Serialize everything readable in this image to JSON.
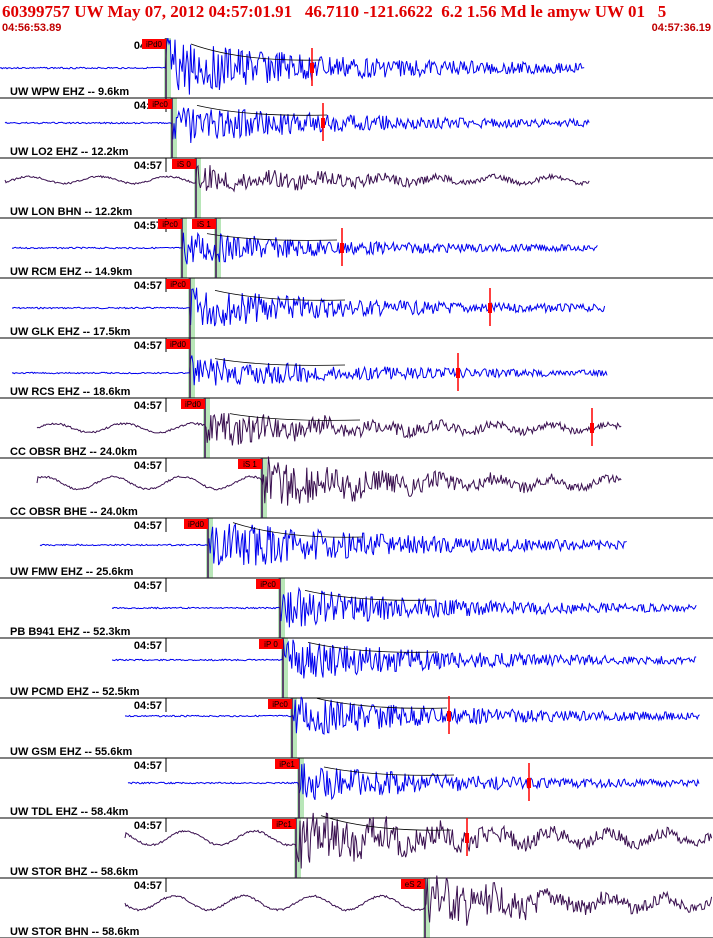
{
  "header": {
    "title": "60399757 UW May 07, 2012 04:57:01.91   46.7110 -121.6622  6.2 1.56 Md le amyw UW 01   5",
    "start_time": "04:56:53.89",
    "end_time": "04:57:36.19"
  },
  "colors": {
    "title": "#e00000",
    "trace_blue": "#0000ee",
    "trace_dark": "#3a1050",
    "pick_box": "#ff0000",
    "phase_band": "#b8e6b8",
    "amplitude_mark": "#ff0000"
  },
  "chart_data": {
    "type": "seismogram",
    "time_range": [
      "04:56:53.89",
      "04:57:36.19"
    ],
    "time_tick_label": "04:57",
    "traces": [
      {
        "label": "UW WPW EHZ -- 9.6km",
        "color": "blue",
        "p_pick": "iPd0",
        "s_pick": "",
        "amp_mark": true
      },
      {
        "label": "UW LO2 EHZ -- 12.2km",
        "color": "blue",
        "p_pick": "iPc0",
        "s_pick": "",
        "amp_mark": true
      },
      {
        "label": "UW LON BHN -- 12.2km",
        "color": "dark",
        "p_pick": "",
        "s_pick": "iS 0",
        "amp_mark": false
      },
      {
        "label": "UW RCM EHZ -- 14.9km",
        "color": "blue",
        "p_pick": "iPc0",
        "s_pick": "iS 1",
        "amp_mark": true
      },
      {
        "label": "UW GLK EHZ -- 17.5km",
        "color": "blue",
        "p_pick": "iPc0",
        "s_pick": "",
        "amp_mark": true
      },
      {
        "label": "UW RCS EHZ -- 18.6km",
        "color": "blue",
        "p_pick": "iPd0",
        "s_pick": "",
        "amp_mark": true
      },
      {
        "label": "CC OBSR BHZ -- 24.0km",
        "color": "dark",
        "p_pick": "iPd0",
        "s_pick": "",
        "amp_mark": true
      },
      {
        "label": "CC OBSR BHE -- 24.0km",
        "color": "dark",
        "p_pick": "",
        "s_pick": "iS 1",
        "amp_mark": false
      },
      {
        "label": "UW FMW EHZ -- 25.6km",
        "color": "blue",
        "p_pick": "iPd0",
        "s_pick": "",
        "amp_mark": false
      },
      {
        "label": "PB B941 EHZ -- 52.3km",
        "color": "blue",
        "p_pick": "iPc0",
        "s_pick": "",
        "amp_mark": false
      },
      {
        "label": "UW PCMD EHZ -- 52.5km",
        "color": "blue",
        "p_pick": "iP 0",
        "s_pick": "",
        "amp_mark": false
      },
      {
        "label": "UW GSM EHZ -- 55.6km",
        "color": "blue",
        "p_pick": "iPc0",
        "s_pick": "",
        "amp_mark": true
      },
      {
        "label": "UW TDL EHZ -- 58.4km",
        "color": "blue",
        "p_pick": "iPc1",
        "s_pick": "",
        "amp_mark": true
      },
      {
        "label": "UW STOR BHZ -- 58.6km",
        "color": "dark",
        "p_pick": "iPc1",
        "s_pick": "",
        "amp_mark": true
      },
      {
        "label": "UW STOR BHN -- 58.6km",
        "color": "dark",
        "p_pick": "",
        "s_pick": "eS 2",
        "amp_mark": false
      }
    ]
  }
}
